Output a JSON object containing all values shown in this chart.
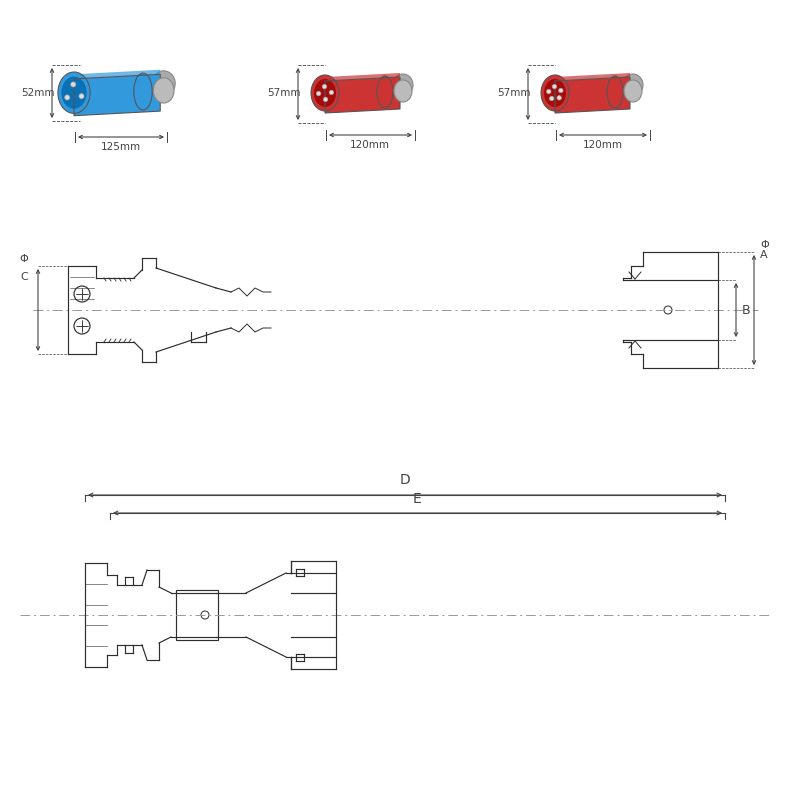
{
  "bg_color": "#ffffff",
  "line_color": "#2d2d2d",
  "dim_line_color": "#444444",
  "center_line_color": "#999999",
  "photo_dims": [
    {
      "width": "125mm",
      "height": "52mm",
      "color": "#3399dd",
      "n_pins": 3
    },
    {
      "width": "120mm",
      "height": "57mm",
      "color": "#cc3333",
      "n_pins": 4
    },
    {
      "width": "120mm",
      "height": "57mm",
      "color": "#cc3333",
      "n_pins": 5
    }
  ],
  "dim_labels": [
    "D",
    "E",
    "B",
    "ΦA",
    "ΦC"
  ]
}
